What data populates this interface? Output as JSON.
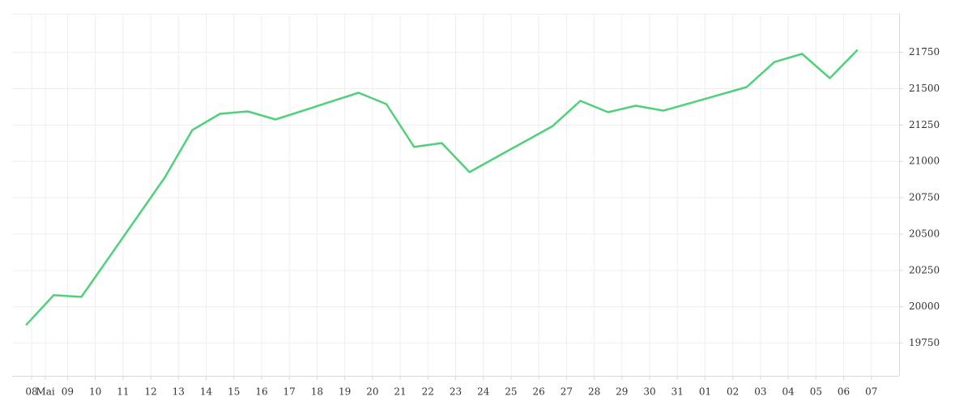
{
  "chart_data": {
    "type": "line",
    "x": [
      0,
      1,
      2,
      3,
      4,
      5,
      6,
      7,
      8,
      9,
      10,
      11,
      12,
      13,
      14,
      15,
      16,
      17,
      18,
      19,
      20,
      21,
      22,
      23,
      24,
      25,
      26,
      27,
      28,
      29,
      30
    ],
    "values": [
      19874,
      20080,
      20068,
      20341,
      20614,
      20887,
      21215,
      21327,
      21344,
      21288,
      21349,
      21411,
      21472,
      21394,
      21099,
      21126,
      20926,
      21032,
      21137,
      21243,
      21416,
      21338,
      21383,
      21349,
      21403,
      21457,
      21511,
      21683,
      21739,
      21572,
      21767
    ],
    "color": "#4fd17a",
    "xlim": [
      -0.5,
      31.5
    ],
    "xticks": [
      {
        "value": 0.2,
        "label": "08"
      },
      {
        "value": 0.7,
        "label": "Mai"
      },
      {
        "value": 1.5,
        "label": "09"
      },
      {
        "value": 2.5,
        "label": "10"
      },
      {
        "value": 3.5,
        "label": "11"
      },
      {
        "value": 4.5,
        "label": "12"
      },
      {
        "value": 5.5,
        "label": "13"
      },
      {
        "value": 6.5,
        "label": "14"
      },
      {
        "value": 7.5,
        "label": "15"
      },
      {
        "value": 8.5,
        "label": "16"
      },
      {
        "value": 9.5,
        "label": "17"
      },
      {
        "value": 10.5,
        "label": "18"
      },
      {
        "value": 11.5,
        "label": "19"
      },
      {
        "value": 12.5,
        "label": "20"
      },
      {
        "value": 13.5,
        "label": "21"
      },
      {
        "value": 14.5,
        "label": "22"
      },
      {
        "value": 15.5,
        "label": "23"
      },
      {
        "value": 16.5,
        "label": "24"
      },
      {
        "value": 17.5,
        "label": "25"
      },
      {
        "value": 18.5,
        "label": "26"
      },
      {
        "value": 19.5,
        "label": "27"
      },
      {
        "value": 20.5,
        "label": "28"
      },
      {
        "value": 21.5,
        "label": "29"
      },
      {
        "value": 22.5,
        "label": "30"
      },
      {
        "value": 23.5,
        "label": "31"
      },
      {
        "value": 24.5,
        "label": "01"
      },
      {
        "value": 25.5,
        "label": "02"
      },
      {
        "value": 26.5,
        "label": "03"
      },
      {
        "value": 27.5,
        "label": "04"
      },
      {
        "value": 28.5,
        "label": "05"
      },
      {
        "value": 29.5,
        "label": "06"
      },
      {
        "value": 30.5,
        "label": "07"
      }
    ],
    "ylim": [
      19525,
      22015
    ],
    "yticks": [
      19750,
      20000,
      20250,
      20500,
      20750,
      21000,
      21250,
      21500,
      21750
    ],
    "grid": true
  }
}
